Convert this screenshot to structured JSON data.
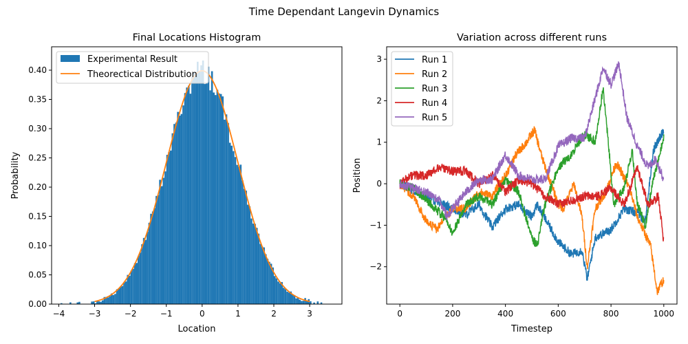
{
  "suptitle": "Time Dependant Langevin Dynamics",
  "colors": {
    "hist": "#1f77b4",
    "theory": "#ff7f0e",
    "runs": [
      "#1f77b4",
      "#ff7f0e",
      "#2ca02c",
      "#d62728",
      "#9467bd"
    ]
  },
  "chart_data": [
    {
      "type": "bar",
      "title": "Final Locations Histogram",
      "xlabel": "Location",
      "ylabel": "Probability",
      "xlim": [
        -4.2,
        3.9
      ],
      "ylim": [
        0,
        0.44
      ],
      "xticks": [
        -4,
        -3,
        -2,
        -1,
        0,
        1,
        2,
        3
      ],
      "yticks": [
        0.0,
        0.05,
        0.1,
        0.15,
        0.2,
        0.25,
        0.3,
        0.35,
        0.4
      ],
      "ytick_labels": [
        "0.00",
        "0.05",
        "0.10",
        "0.15",
        "0.20",
        "0.25",
        "0.30",
        "0.35",
        "0.40"
      ],
      "legend": [
        "Experimental Result",
        "Theorectical Distribution"
      ],
      "legend_loc": "upper-left",
      "histogram": {
        "range": [
          -4.0,
          3.5
        ],
        "num_bins": 150,
        "bin_width": 0.05,
        "note": "bin heights approximate the plotted standard-normal density sample"
      },
      "theoretical_curve": {
        "name": "Theorectical Distribution",
        "function": "standard normal pdf",
        "x_range": [
          -3.0,
          3.0
        ],
        "peak": 0.399
      }
    },
    {
      "type": "line",
      "title": "Variation across different runs",
      "xlabel": "Timestep",
      "ylabel": "Position",
      "xlim": [
        -50,
        1050
      ],
      "ylim": [
        -2.9,
        3.3
      ],
      "xticks": [
        0,
        200,
        400,
        600,
        800,
        1000
      ],
      "yticks": [
        -2,
        -1,
        0,
        1,
        2,
        3
      ],
      "legend_loc": "upper-left",
      "series": [
        {
          "name": "Run 1",
          "points": [
            [
              0,
              0
            ],
            [
              100,
              -0.3
            ],
            [
              200,
              -0.6
            ],
            [
              250,
              -0.75
            ],
            [
              300,
              -0.5
            ],
            [
              350,
              -1.05
            ],
            [
              400,
              -0.6
            ],
            [
              450,
              -0.5
            ],
            [
              500,
              -0.8
            ],
            [
              520,
              -0.5
            ],
            [
              600,
              -1.4
            ],
            [
              650,
              -1.7
            ],
            [
              690,
              -1.6
            ],
            [
              710,
              -2.3
            ],
            [
              740,
              -1.3
            ],
            [
              800,
              -1.1
            ],
            [
              850,
              -0.6
            ],
            [
              900,
              -0.7
            ],
            [
              930,
              -0.9
            ],
            [
              960,
              0.8
            ],
            [
              1000,
              1.3
            ]
          ]
        },
        {
          "name": "Run 2",
          "points": [
            [
              0,
              0
            ],
            [
              50,
              -0.3
            ],
            [
              100,
              -0.9
            ],
            [
              140,
              -1.1
            ],
            [
              200,
              -0.6
            ],
            [
              250,
              -0.6
            ],
            [
              300,
              -0.2
            ],
            [
              350,
              -0.3
            ],
            [
              400,
              0.2
            ],
            [
              440,
              0.7
            ],
            [
              480,
              1.0
            ],
            [
              510,
              1.3
            ],
            [
              540,
              0.6
            ],
            [
              600,
              -0.5
            ],
            [
              620,
              -0.6
            ],
            [
              660,
              0.0
            ],
            [
              690,
              -0.8
            ],
            [
              710,
              -2.0
            ],
            [
              740,
              -0.6
            ],
            [
              780,
              -0.2
            ],
            [
              820,
              0.5
            ],
            [
              870,
              -0.1
            ],
            [
              900,
              -0.8
            ],
            [
              950,
              -1.5
            ],
            [
              975,
              -2.6
            ],
            [
              1000,
              -2.3
            ]
          ]
        },
        {
          "name": "Run 3",
          "points": [
            [
              0,
              0
            ],
            [
              50,
              -0.1
            ],
            [
              120,
              -0.5
            ],
            [
              180,
              -0.9
            ],
            [
              200,
              -1.2
            ],
            [
              250,
              -0.5
            ],
            [
              300,
              -0.3
            ],
            [
              350,
              -0.5
            ],
            [
              400,
              0.1
            ],
            [
              450,
              -0.2
            ],
            [
              500,
              -1.3
            ],
            [
              520,
              -1.5
            ],
            [
              550,
              -0.5
            ],
            [
              600,
              0.4
            ],
            [
              650,
              0.7
            ],
            [
              700,
              1.2
            ],
            [
              740,
              1.0
            ],
            [
              770,
              2.3
            ],
            [
              790,
              1.0
            ],
            [
              810,
              -0.5
            ],
            [
              850,
              -0.1
            ],
            [
              880,
              0.8
            ],
            [
              900,
              -0.5
            ],
            [
              930,
              -1.0
            ],
            [
              960,
              0.1
            ],
            [
              1000,
              1.1
            ]
          ]
        },
        {
          "name": "Run 4",
          "points": [
            [
              0,
              0
            ],
            [
              50,
              0.2
            ],
            [
              100,
              0.2
            ],
            [
              150,
              0.4
            ],
            [
              200,
              0.3
            ],
            [
              250,
              0.3
            ],
            [
              300,
              0.0
            ],
            [
              350,
              0.2
            ],
            [
              400,
              -0.2
            ],
            [
              450,
              0.1
            ],
            [
              500,
              0.0
            ],
            [
              550,
              -0.3
            ],
            [
              600,
              -0.5
            ],
            [
              650,
              -0.4
            ],
            [
              700,
              -0.3
            ],
            [
              750,
              -0.3
            ],
            [
              800,
              -0.1
            ],
            [
              850,
              -0.5
            ],
            [
              900,
              0.4
            ],
            [
              940,
              -0.5
            ],
            [
              980,
              -0.3
            ],
            [
              1000,
              -1.4
            ]
          ]
        },
        {
          "name": "Run 5",
          "points": [
            [
              0,
              0
            ],
            [
              50,
              -0.1
            ],
            [
              100,
              -0.2
            ],
            [
              150,
              -0.4
            ],
            [
              180,
              -0.8
            ],
            [
              200,
              -0.6
            ],
            [
              250,
              -0.2
            ],
            [
              300,
              0.1
            ],
            [
              350,
              0.1
            ],
            [
              400,
              0.7
            ],
            [
              450,
              0.2
            ],
            [
              500,
              0.1
            ],
            [
              550,
              0.1
            ],
            [
              600,
              0.9
            ],
            [
              650,
              1.1
            ],
            [
              700,
              1.1
            ],
            [
              750,
              2.3
            ],
            [
              770,
              2.8
            ],
            [
              800,
              2.4
            ],
            [
              830,
              2.9
            ],
            [
              860,
              1.6
            ],
            [
              900,
              0.9
            ],
            [
              940,
              0.4
            ],
            [
              970,
              0.6
            ],
            [
              1000,
              0.1
            ]
          ]
        }
      ]
    }
  ]
}
